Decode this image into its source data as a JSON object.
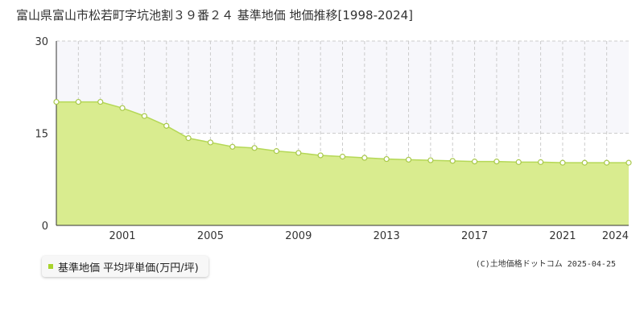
{
  "title": "富山県富山市松若町字坑池割３９番２４ 基準地価 地価推移[1998-2024]",
  "credit": "(C)土地価格ドットコム 2025-04-25",
  "colors": {
    "fill": "#d9ec8f",
    "line": "#b5d857",
    "marker_stroke": "#a8c84a",
    "marker_fill": "#ffffff",
    "grid": "#cccccc",
    "band": "#f7f7fb",
    "legend_swatch": "#a8d32c"
  },
  "chart_data": {
    "type": "area",
    "title": "富山県富山市松若町字坑池割３９番２４ 基準地価 地価推移[1998-2024]",
    "xlabel": "",
    "ylabel": "",
    "xlim": [
      1998,
      2024
    ],
    "ylim": [
      0,
      30
    ],
    "yticks": [
      0,
      15,
      30
    ],
    "xticks": [
      2001,
      2005,
      2009,
      2013,
      2017,
      2021,
      2024
    ],
    "grid": true,
    "legend_position": "bottom-left",
    "series": [
      {
        "name": "基準地価 平均坪単価(万円/坪)",
        "x": [
          1998,
          1999,
          2000,
          2001,
          2002,
          2003,
          2004,
          2005,
          2006,
          2007,
          2008,
          2009,
          2010,
          2011,
          2012,
          2013,
          2014,
          2015,
          2016,
          2017,
          2018,
          2019,
          2020,
          2021,
          2022,
          2023,
          2024
        ],
        "values": [
          20.1,
          20.1,
          20.1,
          19.1,
          17.8,
          16.2,
          14.2,
          13.5,
          12.8,
          12.6,
          12.1,
          11.8,
          11.4,
          11.2,
          11.0,
          10.8,
          10.7,
          10.6,
          10.5,
          10.4,
          10.4,
          10.3,
          10.3,
          10.2,
          10.2,
          10.2,
          10.2
        ]
      }
    ]
  }
}
